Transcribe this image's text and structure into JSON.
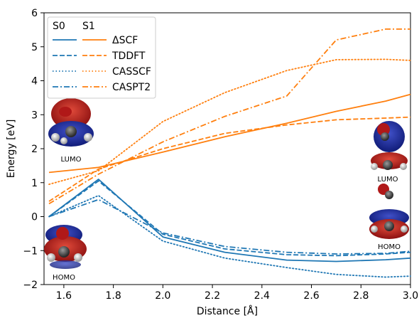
{
  "chart_data": {
    "type": "line",
    "xlabel": "Distance [Å]",
    "ylabel": "Energy [eV]",
    "xlim": [
      1.52,
      3.0
    ],
    "ylim": [
      -2,
      6
    ],
    "x_ticks": [
      "1.6",
      "1.8",
      "2.0",
      "2.2",
      "2.4",
      "2.6",
      "2.8",
      "3.0"
    ],
    "y_ticks": [
      "−2",
      "−1",
      "0",
      "1",
      "2",
      "3",
      "4",
      "5",
      "6"
    ],
    "grid": false,
    "legend": {
      "placement": "top-left",
      "column_headers": [
        "S0",
        "S1"
      ],
      "rows": [
        "ΔSCF",
        "TDDFT",
        "CASSCF",
        "CASPT2"
      ]
    },
    "colors": {
      "S0": "#1f77b4",
      "S1": "#ff7f0e"
    },
    "series": [
      {
        "state": "S0",
        "method": "ΔSCF",
        "style": "solid",
        "x": [
          1.54,
          1.74,
          2.0,
          2.25,
          2.5,
          2.7,
          2.9,
          3.0
        ],
        "y": [
          0.0,
          1.1,
          -0.6,
          -1.05,
          -1.28,
          -1.32,
          -1.27,
          -1.22
        ]
      },
      {
        "state": "S0",
        "method": "TDDFT",
        "style": "dashed",
        "x": [
          1.54,
          1.74,
          2.0,
          2.25,
          2.5,
          2.7,
          2.9,
          3.0
        ],
        "y": [
          0.0,
          1.05,
          -0.52,
          -0.95,
          -1.12,
          -1.15,
          -1.1,
          -1.05
        ]
      },
      {
        "state": "S0",
        "method": "CASSCF",
        "style": "dotted",
        "x": [
          1.54,
          1.74,
          2.0,
          2.25,
          2.5,
          2.7,
          2.9,
          3.0
        ],
        "y": [
          0.0,
          0.62,
          -0.72,
          -1.22,
          -1.5,
          -1.7,
          -1.78,
          -1.75
        ]
      },
      {
        "state": "S0",
        "method": "CASPT2",
        "style": "dashdot",
        "x": [
          1.54,
          1.74,
          2.0,
          2.25,
          2.5,
          2.7,
          2.9,
          3.0
        ],
        "y": [
          0.0,
          0.5,
          -0.48,
          -0.88,
          -1.05,
          -1.1,
          -1.08,
          -1.02
        ]
      },
      {
        "state": "S1",
        "method": "ΔSCF",
        "style": "solid",
        "x": [
          1.54,
          1.74,
          2.0,
          2.25,
          2.5,
          2.7,
          2.9,
          3.0
        ],
        "y": [
          1.3,
          1.45,
          1.9,
          2.35,
          2.75,
          3.1,
          3.4,
          3.6
        ]
      },
      {
        "state": "S1",
        "method": "TDDFT",
        "style": "dashed",
        "x": [
          1.54,
          1.74,
          2.0,
          2.25,
          2.5,
          2.7,
          2.9,
          3.0
        ],
        "y": [
          0.45,
          1.4,
          2.0,
          2.45,
          2.7,
          2.85,
          2.9,
          2.93
        ]
      },
      {
        "state": "S1",
        "method": "CASSCF",
        "style": "dotted",
        "x": [
          1.54,
          1.74,
          2.0,
          2.25,
          2.5,
          2.7,
          2.9,
          3.0
        ],
        "y": [
          0.95,
          1.35,
          2.8,
          3.65,
          4.3,
          4.62,
          4.63,
          4.6
        ]
      },
      {
        "state": "S1",
        "method": "CASPT2",
        "style": "dashdot",
        "x": [
          1.54,
          1.74,
          2.0,
          2.25,
          2.5,
          2.7,
          2.9,
          3.0
        ],
        "y": [
          0.38,
          1.25,
          2.2,
          2.95,
          3.55,
          5.2,
          5.52,
          5.52
        ]
      }
    ]
  },
  "molecule_labels": {
    "left_lumo": "LUMO",
    "left_homo": "HOMO",
    "right_lumo": "LUMO",
    "right_homo": "HOMO"
  }
}
